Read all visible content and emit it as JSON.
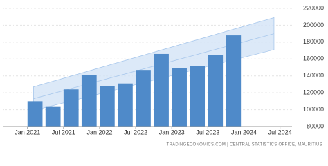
{
  "chart_data": {
    "type": "bar",
    "x": [
      "2021-01",
      "2021-04",
      "2021-07",
      "2021-10",
      "2022-01",
      "2022-04",
      "2022-07",
      "2022-10",
      "2023-01",
      "2023-04",
      "2023-07",
      "2023-10"
    ],
    "values": [
      110000,
      104000,
      124000,
      141000,
      127500,
      131000,
      147000,
      166000,
      149000,
      151500,
      164500,
      188000
    ],
    "color": "#4f8ac9",
    "band": {
      "x": [
        "2021-02",
        "2024-06"
      ],
      "lower": [
        99000,
        171000
      ],
      "upper": [
        127000,
        209000
      ],
      "color": "#d3e3f6"
    },
    "xlim": [
      "2020-09",
      "2024-09"
    ],
    "xticks": [
      {
        "value": "2021-01",
        "label": "Jan 2021"
      },
      {
        "value": "2021-07",
        "label": "Jul 2021"
      },
      {
        "value": "2022-01",
        "label": "Jan 2022"
      },
      {
        "value": "2022-07",
        "label": "Jul 2022"
      },
      {
        "value": "2023-01",
        "label": "Jan 2023"
      },
      {
        "value": "2023-07",
        "label": "Jul 2023"
      },
      {
        "value": "2024-01",
        "label": "Jan 2024"
      },
      {
        "value": "2024-07",
        "label": "Jul 2024"
      }
    ],
    "ylim": [
      80000,
      220000
    ],
    "yticks": [
      80000,
      100000,
      120000,
      140000,
      160000,
      180000,
      200000,
      220000
    ],
    "grid": true,
    "source": "TRADINGECONOMICS.COM | CENTRAL STATISTICS OFFICE, MAURITIUS"
  }
}
